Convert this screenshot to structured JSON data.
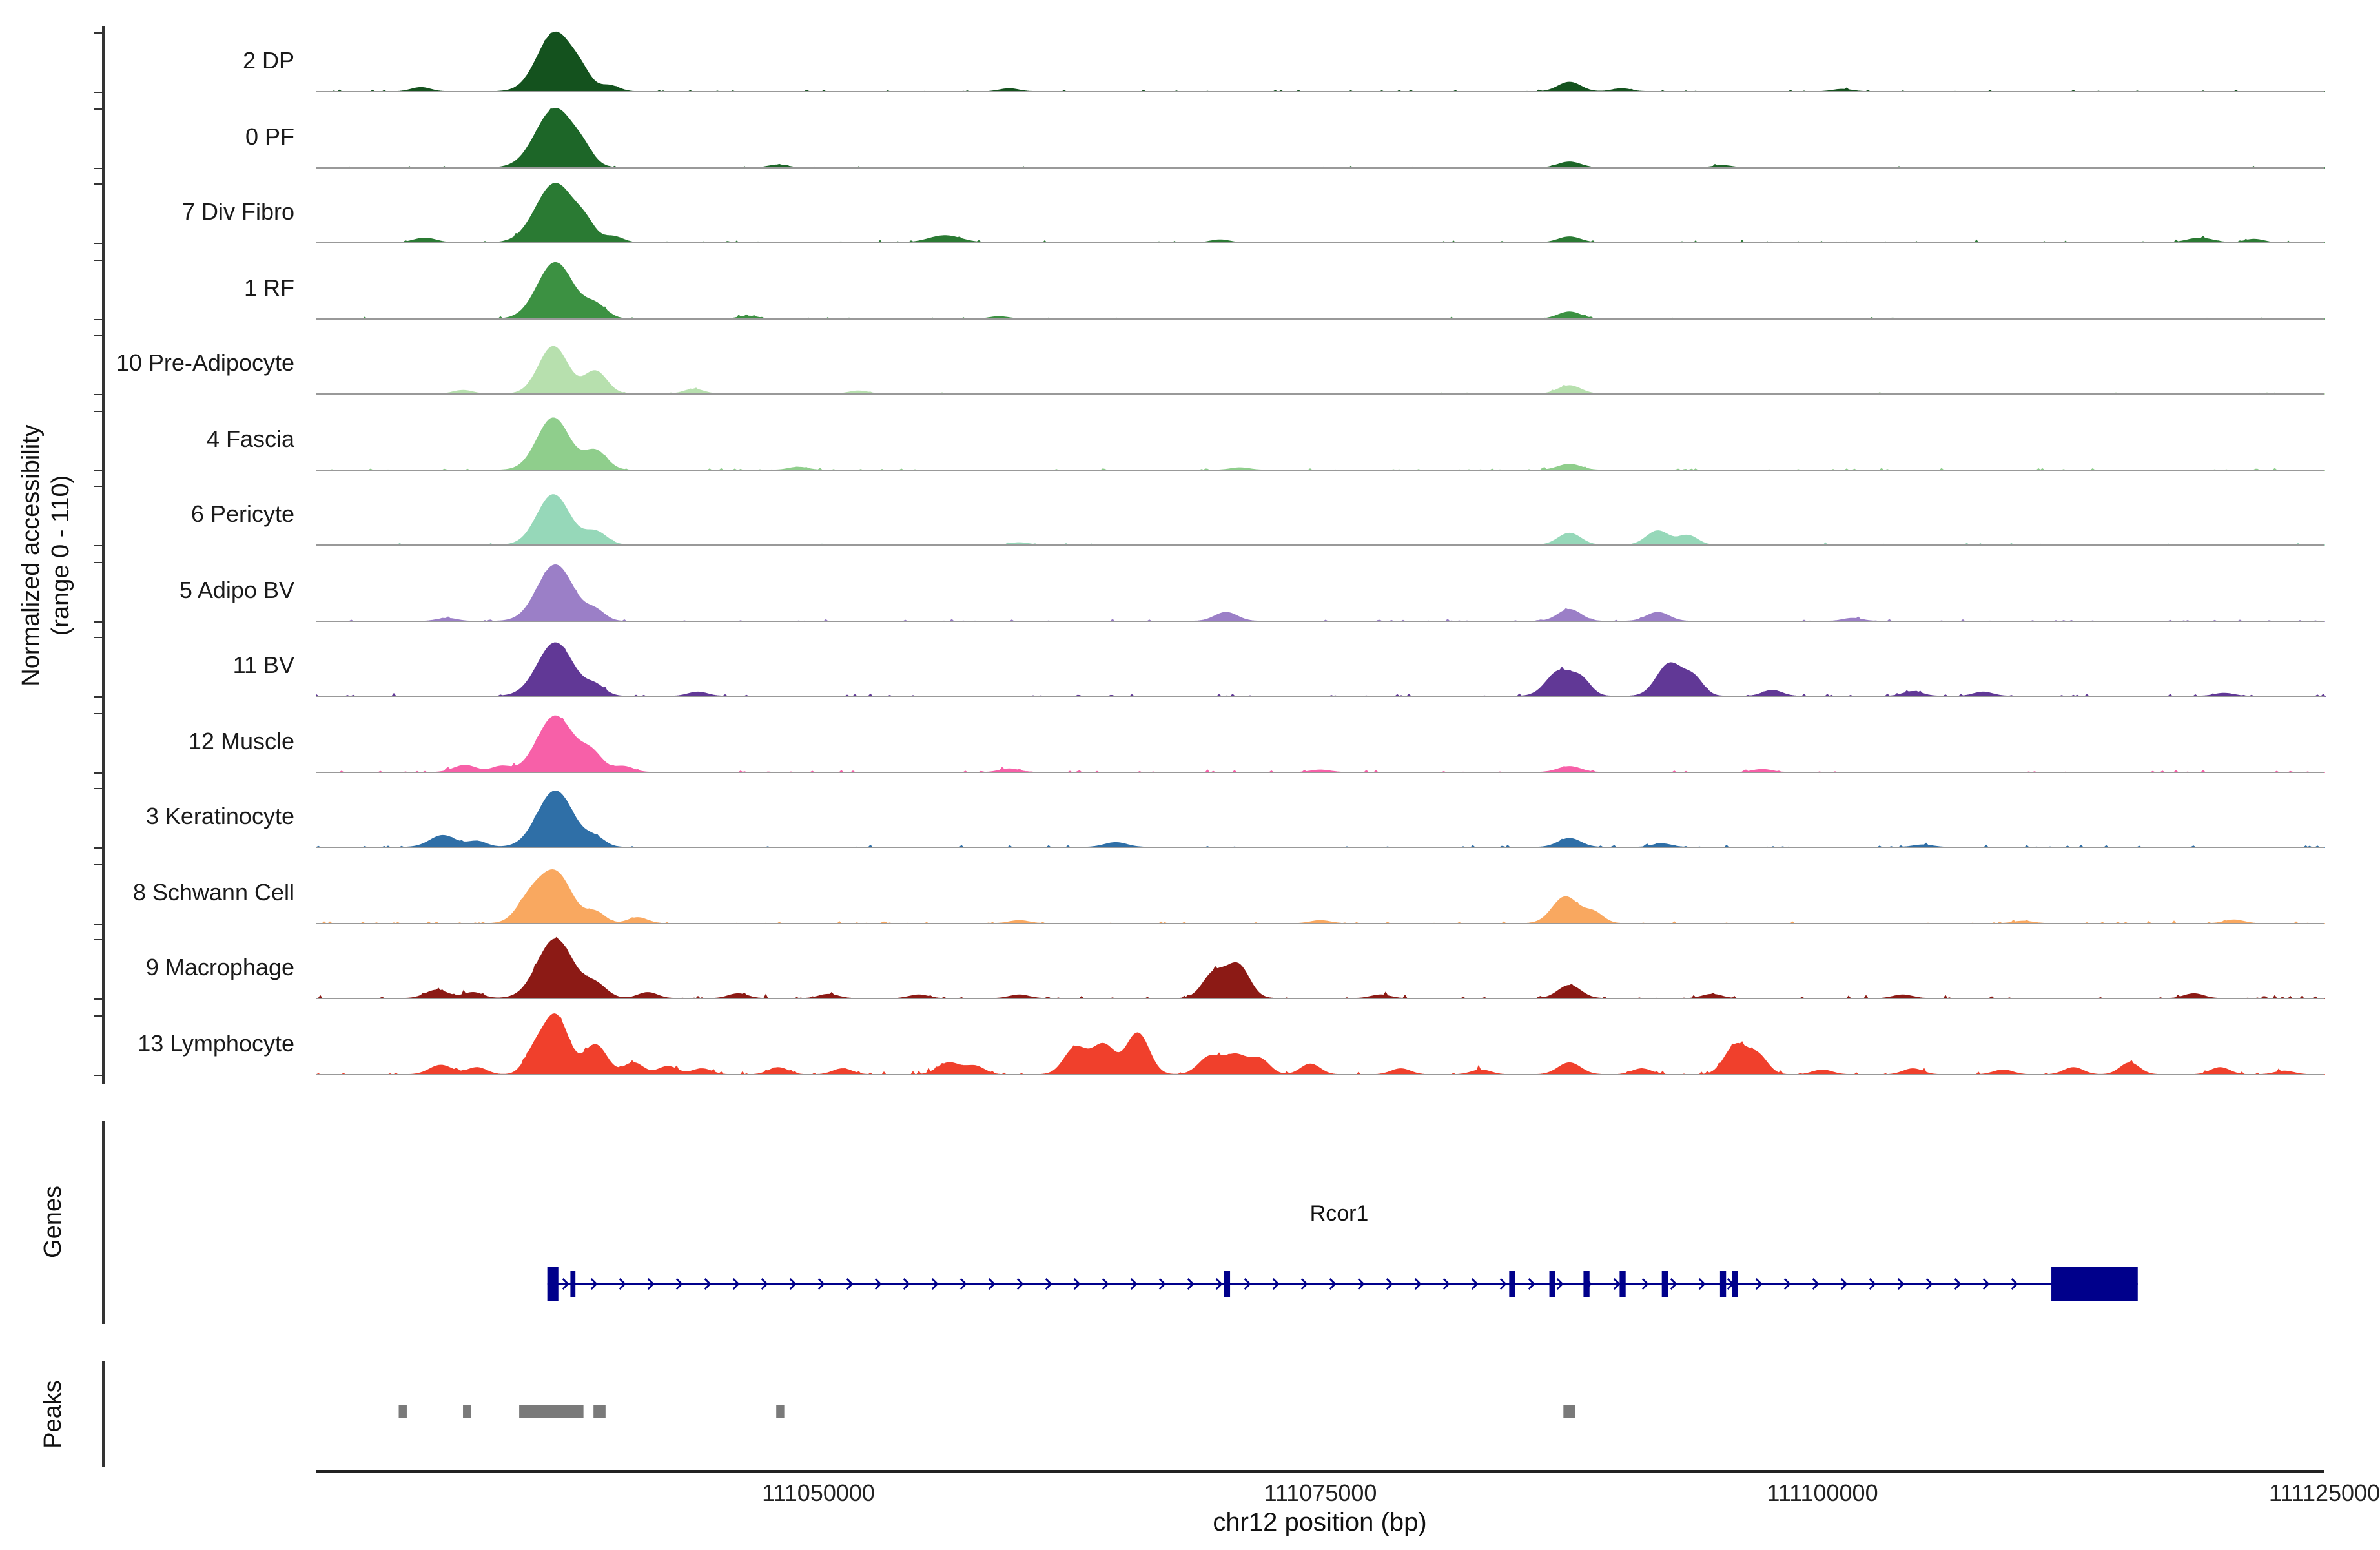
{
  "figure": {
    "y_axis_title_line1": "Normalized accessibility",
    "y_axis_title_line2": "(range 0 - 110)",
    "genes_section_label": "Genes",
    "peaks_section_label": "Peaks",
    "x_axis_title": "chr12 position (bp)"
  },
  "chart_data": {
    "type": "area",
    "subtype": "genome-coverage-tracks",
    "region": {
      "chrom": "chr12",
      "start": 111025000,
      "end": 111125000
    },
    "y_range": [
      0,
      110
    ],
    "x_ticks": [
      111050000,
      111075000,
      111100000,
      111125000
    ],
    "x_tick_labels": [
      "111050000",
      "111075000",
      "111100000",
      "111125000"
    ],
    "baseline_color": "#999999",
    "tracks": [
      {
        "label": "2 DP",
        "color": "#14521e",
        "noise": 0.035,
        "peaks": [
          [
            111030200,
            0.07,
            300
          ],
          [
            111036900,
            1.0,
            550
          ],
          [
            111038200,
            0.18,
            300
          ],
          [
            111039600,
            0.1,
            300
          ],
          [
            111059500,
            0.05,
            300
          ],
          [
            111087400,
            0.16,
            350
          ],
          [
            111090000,
            0.05,
            300
          ],
          [
            111101000,
            0.04,
            300
          ]
        ]
      },
      {
        "label": "0 PF",
        "color": "#1d6628",
        "noise": 0.03,
        "peaks": [
          [
            111036900,
            1.0,
            600
          ],
          [
            111038300,
            0.15,
            300
          ],
          [
            111048000,
            0.05,
            300
          ],
          [
            111087400,
            0.1,
            350
          ],
          [
            111095000,
            0.04,
            300
          ]
        ]
      },
      {
        "label": "7 Div Fibro",
        "color": "#2a7a33",
        "noise": 0.05,
        "peaks": [
          [
            111030400,
            0.08,
            350
          ],
          [
            111036900,
            1.0,
            600
          ],
          [
            111038400,
            0.2,
            300
          ],
          [
            111039800,
            0.1,
            300
          ],
          [
            111056300,
            0.12,
            500
          ],
          [
            111070000,
            0.05,
            300
          ],
          [
            111087400,
            0.1,
            350
          ],
          [
            111118800,
            0.08,
            400
          ],
          [
            111121500,
            0.06,
            300
          ]
        ]
      },
      {
        "label": "1 RF",
        "color": "#3c9142",
        "noise": 0.035,
        "peaks": [
          [
            111036900,
            0.95,
            550
          ],
          [
            111038900,
            0.22,
            350
          ],
          [
            111046500,
            0.05,
            300
          ],
          [
            111059000,
            0.04,
            300
          ],
          [
            111087400,
            0.12,
            350
          ]
        ]
      },
      {
        "label": "10 Pre-Adipocyte",
        "color": "#b7e0ae",
        "noise": 0.03,
        "peaks": [
          [
            111032300,
            0.06,
            300
          ],
          [
            111036800,
            0.8,
            450
          ],
          [
            111038900,
            0.38,
            350
          ],
          [
            111043800,
            0.08,
            300
          ],
          [
            111052000,
            0.05,
            300
          ],
          [
            111087400,
            0.14,
            350
          ]
        ]
      },
      {
        "label": "4 Fascia",
        "color": "#8fce8c",
        "noise": 0.035,
        "peaks": [
          [
            111036800,
            0.88,
            500
          ],
          [
            111038900,
            0.32,
            350
          ],
          [
            111049000,
            0.05,
            300
          ],
          [
            111071000,
            0.04,
            300
          ],
          [
            111087400,
            0.1,
            350
          ]
        ]
      },
      {
        "label": "6 Pericyte",
        "color": "#96d8b9",
        "noise": 0.04,
        "peaks": [
          [
            111036800,
            0.85,
            500
          ],
          [
            111038900,
            0.22,
            350
          ],
          [
            111060000,
            0.04,
            300
          ],
          [
            111087400,
            0.2,
            350
          ],
          [
            111091800,
            0.24,
            350
          ],
          [
            111093300,
            0.16,
            300
          ]
        ]
      },
      {
        "label": "5 Adipo BV",
        "color": "#9b7fc7",
        "noise": 0.04,
        "peaks": [
          [
            111031500,
            0.05,
            300
          ],
          [
            111036900,
            0.95,
            550
          ],
          [
            111038900,
            0.16,
            300
          ],
          [
            111070300,
            0.15,
            350
          ],
          [
            111087400,
            0.2,
            350
          ],
          [
            111091800,
            0.15,
            350
          ],
          [
            111101500,
            0.05,
            300
          ]
        ]
      },
      {
        "label": "11 BV",
        "color": "#613896",
        "noise": 0.045,
        "peaks": [
          [
            111036900,
            0.9,
            550
          ],
          [
            111038900,
            0.16,
            300
          ],
          [
            111044000,
            0.07,
            300
          ],
          [
            111086900,
            0.42,
            400
          ],
          [
            111088000,
            0.25,
            300
          ],
          [
            111092400,
            0.55,
            400
          ],
          [
            111093600,
            0.28,
            300
          ],
          [
            111097500,
            0.1,
            300
          ],
          [
            111104500,
            0.08,
            300
          ],
          [
            111108000,
            0.07,
            300
          ],
          [
            111120000,
            0.05,
            300
          ]
        ]
      },
      {
        "label": "12 Muscle",
        "color": "#f760a8",
        "noise": 0.05,
        "peaks": [
          [
            111032400,
            0.12,
            350
          ],
          [
            111034200,
            0.1,
            300
          ],
          [
            111036900,
            0.95,
            550
          ],
          [
            111038700,
            0.3,
            350
          ],
          [
            111040300,
            0.1,
            300
          ],
          [
            111059500,
            0.06,
            300
          ],
          [
            111075000,
            0.04,
            300
          ],
          [
            111087400,
            0.1,
            350
          ],
          [
            111097000,
            0.05,
            300
          ]
        ]
      },
      {
        "label": "3 Keratinocyte",
        "color": "#2f6fa7",
        "noise": 0.04,
        "peaks": [
          [
            111031300,
            0.2,
            400
          ],
          [
            111033000,
            0.1,
            300
          ],
          [
            111036900,
            0.95,
            550
          ],
          [
            111038900,
            0.14,
            300
          ],
          [
            111064800,
            0.08,
            350
          ],
          [
            111087400,
            0.15,
            350
          ],
          [
            111092000,
            0.06,
            300
          ],
          [
            111105000,
            0.04,
            300
          ]
        ]
      },
      {
        "label": "8 Schwann Cell",
        "color": "#f9a860",
        "noise": 0.05,
        "peaks": [
          [
            111035600,
            0.35,
            400
          ],
          [
            111036900,
            0.85,
            500
          ],
          [
            111038900,
            0.18,
            300
          ],
          [
            111041000,
            0.1,
            300
          ],
          [
            111060000,
            0.05,
            300
          ],
          [
            111075000,
            0.05,
            300
          ],
          [
            111087200,
            0.45,
            400
          ],
          [
            111088600,
            0.18,
            300
          ],
          [
            111110000,
            0.04,
            300
          ],
          [
            111120500,
            0.06,
            300
          ]
        ]
      },
      {
        "label": "9 Macrophage",
        "color": "#8c1a15",
        "noise": 0.07,
        "peaks": [
          [
            111031000,
            0.14,
            350
          ],
          [
            111032800,
            0.1,
            300
          ],
          [
            111036900,
            1.0,
            550
          ],
          [
            111038900,
            0.22,
            350
          ],
          [
            111041500,
            0.1,
            300
          ],
          [
            111046000,
            0.08,
            300
          ],
          [
            111050500,
            0.07,
            300
          ],
          [
            111055000,
            0.06,
            300
          ],
          [
            111060000,
            0.06,
            300
          ],
          [
            111069700,
            0.42,
            350
          ],
          [
            111070900,
            0.55,
            350
          ],
          [
            111078000,
            0.06,
            300
          ],
          [
            111087400,
            0.22,
            350
          ],
          [
            111094500,
            0.07,
            300
          ],
          [
            111104000,
            0.06,
            300
          ],
          [
            111118500,
            0.08,
            300
          ]
        ]
      },
      {
        "label": "13 Lymphocyte",
        "color": "#f0402c",
        "noise": 0.08,
        "peaks": [
          [
            111031200,
            0.16,
            350
          ],
          [
            111033000,
            0.12,
            300
          ],
          [
            111035800,
            0.3,
            300
          ],
          [
            111036900,
            1.0,
            400
          ],
          [
            111038900,
            0.5,
            350
          ],
          [
            111040800,
            0.2,
            300
          ],
          [
            111042500,
            0.14,
            300
          ],
          [
            111044200,
            0.1,
            300
          ],
          [
            111048000,
            0.12,
            300
          ],
          [
            111051200,
            0.1,
            300
          ],
          [
            111056500,
            0.2,
            350
          ],
          [
            111057800,
            0.14,
            300
          ],
          [
            111062800,
            0.45,
            350
          ],
          [
            111064200,
            0.5,
            350
          ],
          [
            111065900,
            0.7,
            350
          ],
          [
            111069500,
            0.3,
            350
          ],
          [
            111070800,
            0.32,
            350
          ],
          [
            111072000,
            0.25,
            300
          ],
          [
            111074500,
            0.18,
            300
          ],
          [
            111079000,
            0.1,
            300
          ],
          [
            111083000,
            0.08,
            300
          ],
          [
            111087400,
            0.2,
            350
          ],
          [
            111091000,
            0.1,
            300
          ],
          [
            111095700,
            0.5,
            350
          ],
          [
            111096800,
            0.3,
            300
          ],
          [
            111100000,
            0.08,
            300
          ],
          [
            111104500,
            0.1,
            300
          ],
          [
            111109000,
            0.08,
            300
          ],
          [
            111112500,
            0.12,
            300
          ],
          [
            111115300,
            0.2,
            300
          ],
          [
            111119800,
            0.12,
            300
          ],
          [
            111123000,
            0.06,
            300
          ]
        ]
      }
    ],
    "gene": {
      "name": "Rcor1",
      "color": "#00008b",
      "strand": "+",
      "start": 111036500,
      "end": 111115700,
      "exons": [
        [
          111036500,
          111037050
        ],
        [
          111037650,
          111037900
        ],
        [
          111070200,
          111070500
        ],
        [
          111084400,
          111084700
        ],
        [
          111086400,
          111086700
        ],
        [
          111088100,
          111088400
        ],
        [
          111089900,
          111090200
        ],
        [
          111092000,
          111092300
        ],
        [
          111094900,
          111095200
        ],
        [
          111095500,
          111095800
        ],
        [
          111111400,
          111115700
        ]
      ]
    },
    "peak_color": "#7a7a7a",
    "peak_regions": [
      [
        111029100,
        111029500
      ],
      [
        111032300,
        111032700
      ],
      [
        111035100,
        111038300
      ],
      [
        111038800,
        111039400
      ],
      [
        111047900,
        111048300
      ],
      [
        111087100,
        111087700
      ]
    ]
  }
}
